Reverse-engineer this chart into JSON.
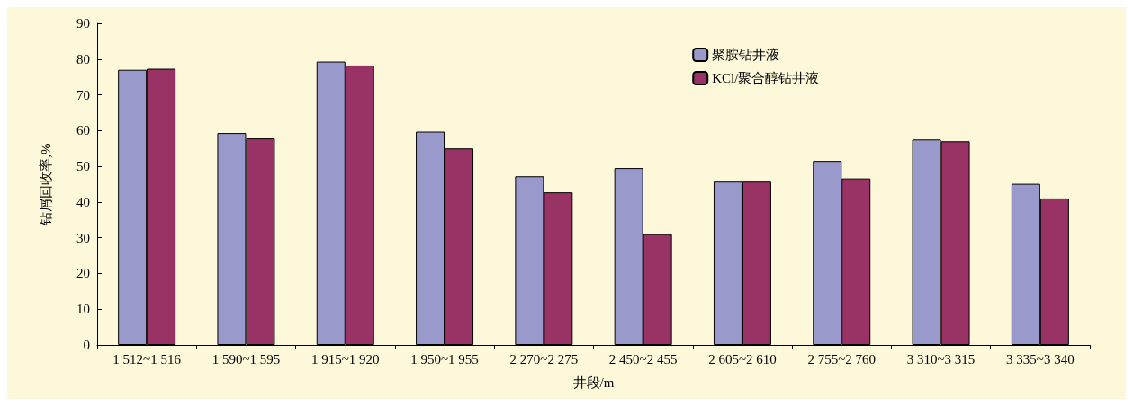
{
  "chart_data": {
    "type": "bar",
    "xlabel": "井段/m",
    "ylabel": "钻屑回收率,%",
    "categories": [
      "1 512~1 516",
      "1 590~1 595",
      "1 915~1 920",
      "1 950~1 955",
      "2 270~2 275",
      "2 450~2 455",
      "2 605~2 610",
      "2 755~2 760",
      "3 310~3 315",
      "3 335~3 340"
    ],
    "series": [
      {
        "name": "聚胺钻井液",
        "color": "#9999cc",
        "values": [
          77,
          59.3,
          79.3,
          59.7,
          47.2,
          49.5,
          45.7,
          51.5,
          57.5,
          45.1
        ]
      },
      {
        "name": "KCl/聚合醇钻井液",
        "color": "#993366",
        "values": [
          77.3,
          57.8,
          78.2,
          55,
          42.7,
          31,
          45.7,
          46.6,
          57,
          41
        ]
      }
    ],
    "ylim": [
      0,
      90
    ],
    "yticks": [
      0,
      10,
      20,
      30,
      40,
      50,
      60,
      70,
      80,
      90
    ],
    "grid": false,
    "legend": "top right"
  }
}
